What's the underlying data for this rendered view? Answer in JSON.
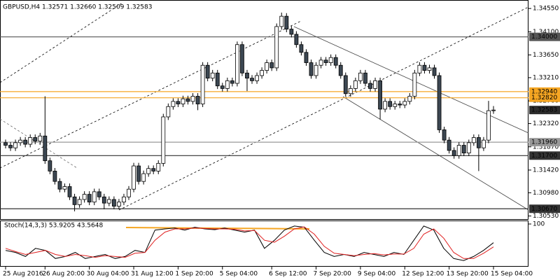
{
  "chart_data": [
    {
      "type": "candlestick",
      "title": "GBPUSD,H4 1.32571 1.32660 1.32509 1.32583",
      "categories": [
        "25 Aug 2016",
        null,
        null,
        null,
        null,
        null,
        null,
        null,
        "26 Aug 20:00",
        null,
        null,
        null,
        null,
        null,
        null,
        null,
        null,
        "30 Aug 04:00",
        null,
        null,
        null,
        null,
        null,
        null,
        null,
        null,
        "31 Aug 12:00",
        null,
        null,
        null,
        null,
        null,
        null,
        null,
        null,
        "1 Sep 20:00",
        null,
        null,
        null,
        null,
        null,
        null,
        null,
        null,
        "5 Sep 04:00",
        null,
        null,
        null,
        null,
        null,
        null,
        null,
        null,
        null,
        "6 Sep 12:00",
        null,
        null,
        null,
        null,
        null,
        null,
        null,
        null,
        "7 Sep 20:00",
        null,
        null,
        null,
        null,
        null,
        null,
        null,
        null,
        "9 Sep 04:00",
        null,
        null,
        null,
        null,
        null,
        null,
        null,
        null,
        "12 Sep 12:00",
        null,
        null,
        null,
        null,
        null,
        null,
        null,
        null,
        "13 Sep 20:00",
        null,
        null,
        null,
        null,
        null,
        null,
        null,
        null,
        "15 Sep 04:00"
      ],
      "open": [
        1.3195,
        1.319,
        1.3185,
        1.3195,
        1.32,
        1.3192,
        1.3205,
        1.3198,
        1.3208,
        1.316,
        1.314,
        1.312,
        1.3105,
        1.311,
        1.309,
        1.3075,
        1.3085,
        1.3095,
        1.308,
        1.31,
        1.309,
        1.3078,
        1.3085,
        1.3072,
        1.308,
        1.309,
        1.3105,
        1.315,
        1.312,
        1.3135,
        1.3145,
        1.314,
        1.3155,
        1.3245,
        1.3265,
        1.3275,
        1.327,
        1.328,
        1.3275,
        1.3285,
        1.327,
        1.3345,
        1.332,
        1.333,
        1.3305,
        1.33,
        1.3315,
        1.331,
        1.3385,
        1.333,
        1.332,
        1.3315,
        1.3325,
        1.3335,
        1.335,
        1.334,
        1.342,
        1.344,
        1.3415,
        1.3405,
        1.3385,
        1.337,
        1.335,
        1.3325,
        1.3345,
        1.3355,
        1.335,
        1.336,
        1.3345,
        1.3325,
        1.329,
        1.33,
        1.3315,
        1.333,
        1.331,
        1.33,
        1.3315,
        1.326,
        1.3275,
        1.3265,
        1.327,
        1.3268,
        1.3275,
        1.3285,
        1.333,
        1.3345,
        1.3335,
        1.334,
        1.3325,
        1.322,
        1.32,
        1.318,
        1.317,
        1.319,
        1.3175,
        1.3195,
        1.3205,
        1.3185,
        1.32,
        1.32571
      ],
      "high": [
        1.3201,
        1.3196,
        1.3201,
        1.3206,
        1.3206,
        1.3211,
        1.3211,
        1.3214,
        1.3285,
        1.3166,
        1.3146,
        1.3126,
        1.3116,
        1.3116,
        1.3096,
        1.3091,
        1.3101,
        1.3101,
        1.3106,
        1.3106,
        1.3096,
        1.3091,
        1.3091,
        1.3086,
        1.3096,
        1.3111,
        1.3156,
        1.3156,
        1.3141,
        1.3151,
        1.3151,
        1.3161,
        1.3251,
        1.3271,
        1.3281,
        1.3281,
        1.3286,
        1.3286,
        1.3291,
        1.3291,
        1.3351,
        1.3351,
        1.3336,
        1.3336,
        1.3311,
        1.3321,
        1.3321,
        1.3391,
        1.3391,
        1.3336,
        1.3326,
        1.3331,
        1.3341,
        1.3356,
        1.3356,
        1.3426,
        1.3447,
        1.3446,
        1.3421,
        1.3411,
        1.3391,
        1.3376,
        1.3356,
        1.3351,
        1.3361,
        1.3361,
        1.3366,
        1.3366,
        1.3351,
        1.3331,
        1.3306,
        1.3321,
        1.3336,
        1.3336,
        1.3316,
        1.3321,
        1.3321,
        1.3281,
        1.3281,
        1.3276,
        1.3276,
        1.3281,
        1.3291,
        1.3336,
        1.3351,
        1.3351,
        1.3346,
        1.3346,
        1.3331,
        1.3226,
        1.3206,
        1.3186,
        1.3196,
        1.3196,
        1.3201,
        1.3211,
        1.3211,
        1.3206,
        1.3276,
        1.3266
      ],
      "low": [
        1.3184,
        1.3179,
        1.3179,
        1.3189,
        1.3186,
        1.3186,
        1.3192,
        1.3192,
        1.3154,
        1.3134,
        1.3114,
        1.3099,
        1.3099,
        1.3084,
        1.3062,
        1.3069,
        1.3079,
        1.3074,
        1.3074,
        1.3084,
        1.3066,
        1.3072,
        1.3066,
        1.3066,
        1.3074,
        1.3084,
        1.3099,
        1.3114,
        1.3114,
        1.3129,
        1.3134,
        1.3134,
        1.3149,
        1.3239,
        1.3259,
        1.3264,
        1.3264,
        1.3269,
        1.3269,
        1.3258,
        1.3264,
        1.3314,
        1.3314,
        1.3299,
        1.3294,
        1.3294,
        1.3304,
        1.3304,
        1.3324,
        1.3295,
        1.3309,
        1.3309,
        1.3319,
        1.3329,
        1.3334,
        1.3334,
        1.3414,
        1.3409,
        1.3399,
        1.3379,
        1.3364,
        1.3344,
        1.3319,
        1.3319,
        1.3339,
        1.3344,
        1.3344,
        1.3339,
        1.3319,
        1.3284,
        1.3284,
        1.3294,
        1.3309,
        1.3304,
        1.3294,
        1.3294,
        1.324,
        1.3254,
        1.3259,
        1.3259,
        1.3262,
        1.3262,
        1.3269,
        1.3279,
        1.3324,
        1.3329,
        1.3329,
        1.3319,
        1.3214,
        1.3194,
        1.3174,
        1.3164,
        1.3164,
        1.3169,
        1.3169,
        1.3189,
        1.314,
        1.3179,
        1.3194,
        1.32509
      ],
      "close": [
        1.319,
        1.3185,
        1.3195,
        1.32,
        1.3192,
        1.3205,
        1.3198,
        1.3208,
        1.316,
        1.314,
        1.312,
        1.3105,
        1.311,
        1.309,
        1.3075,
        1.3085,
        1.3095,
        1.308,
        1.31,
        1.309,
        1.3078,
        1.3085,
        1.3072,
        1.308,
        1.309,
        1.3105,
        1.315,
        1.312,
        1.3135,
        1.3145,
        1.314,
        1.3155,
        1.3245,
        1.3265,
        1.3275,
        1.327,
        1.328,
        1.3275,
        1.3285,
        1.327,
        1.3345,
        1.332,
        1.333,
        1.3305,
        1.33,
        1.3315,
        1.331,
        1.3385,
        1.333,
        1.332,
        1.3315,
        1.3325,
        1.3335,
        1.335,
        1.334,
        1.342,
        1.344,
        1.3415,
        1.3405,
        1.3385,
        1.337,
        1.335,
        1.3325,
        1.3345,
        1.3355,
        1.335,
        1.336,
        1.3345,
        1.3325,
        1.329,
        1.33,
        1.3315,
        1.333,
        1.331,
        1.33,
        1.3315,
        1.326,
        1.3275,
        1.3265,
        1.327,
        1.3268,
        1.3275,
        1.3285,
        1.333,
        1.3345,
        1.3335,
        1.334,
        1.3325,
        1.322,
        1.32,
        1.318,
        1.317,
        1.319,
        1.3175,
        1.3195,
        1.3205,
        1.3185,
        1.32,
        1.3257,
        1.32583
      ],
      "bull_color": "#ffffff",
      "bear_color": "#3c4752",
      "ylim": [
        1.3047,
        1.3466
      ],
      "yticks": [
        {
          "value": 1.3455,
          "label": "1.34550"
        },
        {
          "value": 1.341,
          "label": "1.34100"
        },
        {
          "value": 1.3365,
          "label": "1.33650"
        },
        {
          "value": 1.3321,
          "label": "1.33210"
        },
        {
          "value": 1.3276,
          "label": "1.32760"
        },
        {
          "value": 1.3232,
          "label": "1.32320"
        },
        {
          "value": 1.3187,
          "label": "1.31870"
        },
        {
          "value": 1.3142,
          "label": "1.31420"
        },
        {
          "value": 1.3098,
          "label": "1.30980"
        },
        {
          "value": 1.3053,
          "label": "1.30530"
        }
      ],
      "levels": [
        {
          "value": 1.34,
          "label": "1.34000",
          "color": "#555555"
        },
        {
          "value": 1.3294,
          "label": "1.32940",
          "color": "#f5a623"
        },
        {
          "value": 1.3282,
          "label": "1.32820",
          "color": "#f5a623"
        },
        {
          "value": 1.3196,
          "label": "1.31960",
          "color": "#999999"
        },
        {
          "value": 1.317,
          "label": "1.31700",
          "color": "#333333"
        },
        {
          "value": 1.3067,
          "label": "1.30670",
          "color": "#333333"
        }
      ]
    },
    {
      "type": "line",
      "title": "Stoch(14,3,3) 53.9205 43.5648",
      "ylim": [
        0,
        100
      ],
      "yticks": [
        100
      ],
      "series": [
        {
          "color": "#000000",
          "values": [
            35,
            30,
            20,
            40,
            35,
            15,
            20,
            30,
            15,
            20,
            25,
            15,
            20,
            35,
            30,
            85,
            88,
            90,
            85,
            92,
            88,
            86,
            90,
            85,
            80,
            85,
            40,
            60,
            85,
            95,
            92,
            60,
            30,
            20,
            25,
            20,
            30,
            25,
            20,
            30,
            25,
            60,
            95,
            85,
            40,
            15,
            10,
            20,
            35,
            53.92
          ]
        },
        {
          "color": "#e02020",
          "values": [
            40,
            32,
            25,
            30,
            35,
            25,
            20,
            25,
            22,
            18,
            22,
            20,
            18,
            28,
            30,
            60,
            80,
            88,
            88,
            90,
            89,
            88,
            88,
            87,
            83,
            84,
            60,
            55,
            70,
            88,
            93,
            75,
            45,
            28,
            25,
            22,
            25,
            27,
            24,
            26,
            26,
            40,
            75,
            88,
            65,
            30,
            15,
            15,
            28,
            43.56
          ]
        }
      ]
    }
  ]
}
